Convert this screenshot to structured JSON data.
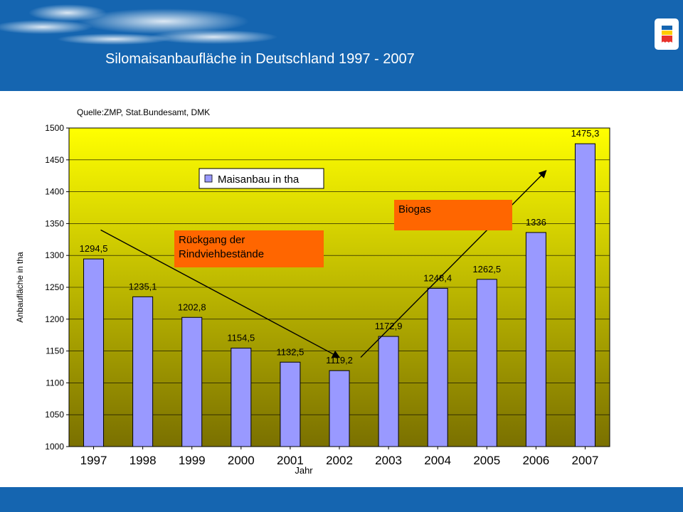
{
  "header": {
    "title": "Silomaisanbaufläche in Deutschland 1997 - 2007",
    "bg_color": "#1565b0"
  },
  "logo": {
    "icon": "regional-flag-logo-icon"
  },
  "chart_data": {
    "type": "bar",
    "source": "Quelle:ZMP, Stat.Bundesamt, DMK",
    "categories": [
      "1997",
      "1998",
      "1999",
      "2000",
      "2001",
      "2002",
      "2003",
      "2004",
      "2005",
      "2006",
      "2007"
    ],
    "values": [
      1294.5,
      1235.1,
      1202.8,
      1154.5,
      1132.5,
      1119.2,
      1172.9,
      1248.4,
      1262.5,
      1336,
      1475.3
    ],
    "value_labels": [
      "1294,5",
      "1235,1",
      "1202,8",
      "1154,5",
      "1132,5",
      "1119,2",
      "1172,9",
      "1248,4",
      "1262,5",
      "1336",
      "1475,3"
    ],
    "series": [
      {
        "name": "Maisanbau in tha",
        "color": "#9999ff"
      }
    ],
    "xlabel": "Jahr",
    "ylabel": "Anbaufläche in tha",
    "ylim": [
      1000,
      1500
    ],
    "yticks": [
      "1000",
      "1050",
      "1100",
      "1150",
      "1200",
      "1250",
      "1300",
      "1350",
      "1400",
      "1450",
      "1500"
    ],
    "grid": true,
    "legend_position": "top-center",
    "background_gradient": [
      "#ffff00",
      "#7a7000"
    ],
    "annotations": [
      {
        "text_lines": [
          "Rückgang der",
          "Rindviehbestände"
        ],
        "box_color": "#ff6600",
        "arrow_from": {
          "x": "1997",
          "y": 1340
        },
        "arrow_to": {
          "x": "2002",
          "y": 1140
        }
      },
      {
        "text_lines": [
          "Biogas"
        ],
        "box_color": "#ff6600",
        "arrow_from": {
          "x": "2002",
          "y": 1140
        },
        "arrow_to": {
          "x": "2007",
          "y": 1433
        }
      }
    ]
  }
}
